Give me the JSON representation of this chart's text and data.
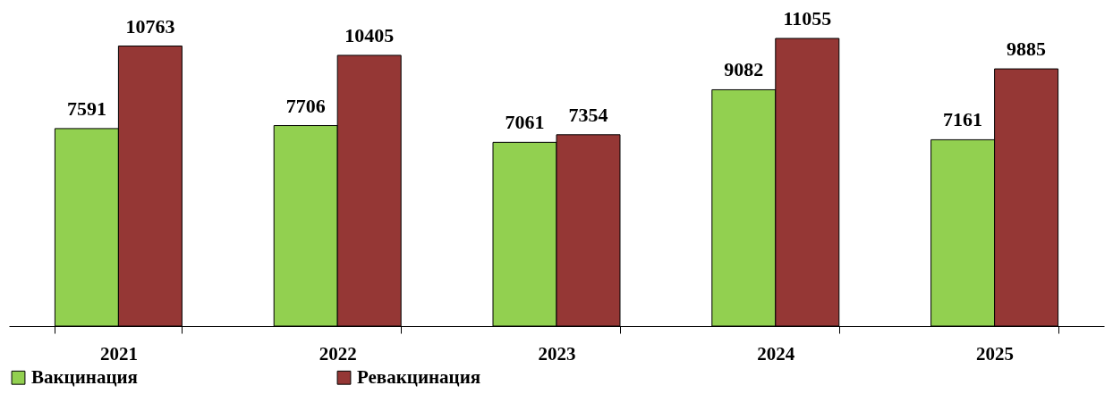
{
  "chart_data": {
    "type": "bar",
    "categories": [
      "2021",
      "2022",
      "2023",
      "2024",
      "2025"
    ],
    "series": [
      {
        "name": "Вакцинация",
        "color": "#92d050",
        "values": [
          7591,
          7706,
          7061,
          9082,
          7161
        ]
      },
      {
        "name": "Ревакцинация",
        "color": "#953735",
        "values": [
          10763,
          10405,
          7354,
          11055,
          9885
        ]
      }
    ],
    "data_labels": true,
    "tick_labels": "x",
    "legend": "bottom"
  }
}
